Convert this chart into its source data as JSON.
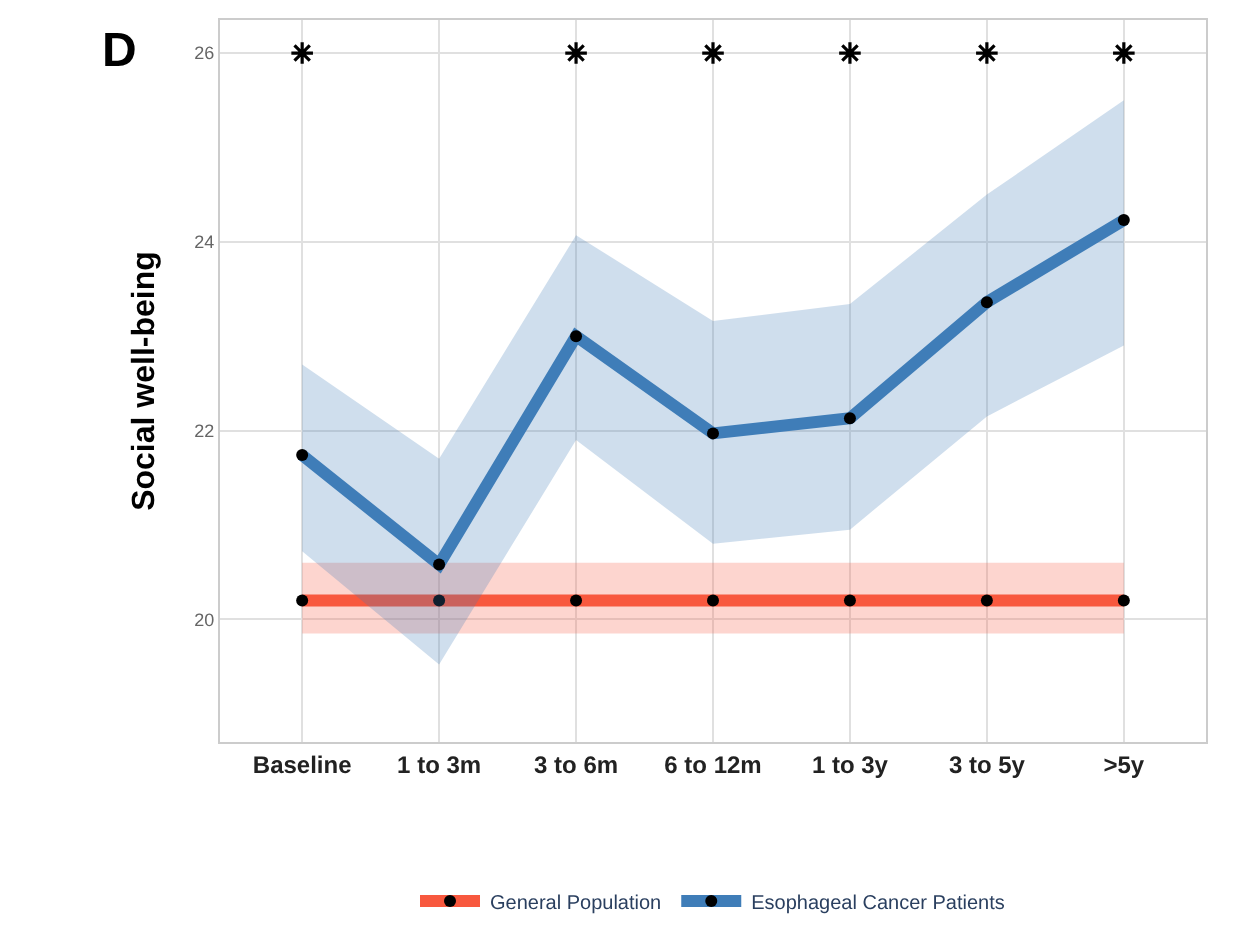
{
  "chart_data": {
    "type": "line",
    "ylabel": "Social well-being",
    "categories": [
      "Baseline",
      "1 to 3m",
      "3 to 6m",
      "6 to 12m",
      "1 to 3y",
      "3 to 5y",
      ">5y"
    ],
    "series": [
      {
        "name": "General Population",
        "color": "#f8583e",
        "values": [
          20.2,
          20.2,
          20.2,
          20.2,
          20.2,
          20.2,
          20.2
        ],
        "lower": [
          19.85,
          19.85,
          19.85,
          19.85,
          19.85,
          19.85,
          19.85
        ],
        "upper": [
          20.6,
          20.6,
          20.6,
          20.6,
          20.6,
          20.6,
          20.6
        ]
      },
      {
        "name": "Esophageal Cancer Patients",
        "color": "#3f7db8",
        "values": [
          21.74,
          20.58,
          23.0,
          21.97,
          22.13,
          23.36,
          24.23
        ],
        "lower": [
          20.72,
          19.52,
          21.9,
          20.8,
          20.95,
          22.15,
          22.9
        ],
        "upper": [
          22.7,
          21.7,
          24.07,
          23.16,
          23.34,
          24.5,
          25.5
        ]
      },
      {
        "type": "scatter",
        "marker": "cross",
        "color": "#000000",
        "values": [
          26,
          null,
          26,
          26,
          26,
          26,
          26
        ]
      }
    ],
    "ylim": [
      18.7,
      26.35
    ],
    "yticks": [
      20,
      22,
      24,
      26
    ],
    "grid": true,
    "legend": "bottom",
    "marker": "circle",
    "line_style": "solid",
    "annotations": [
      "D"
    ]
  }
}
